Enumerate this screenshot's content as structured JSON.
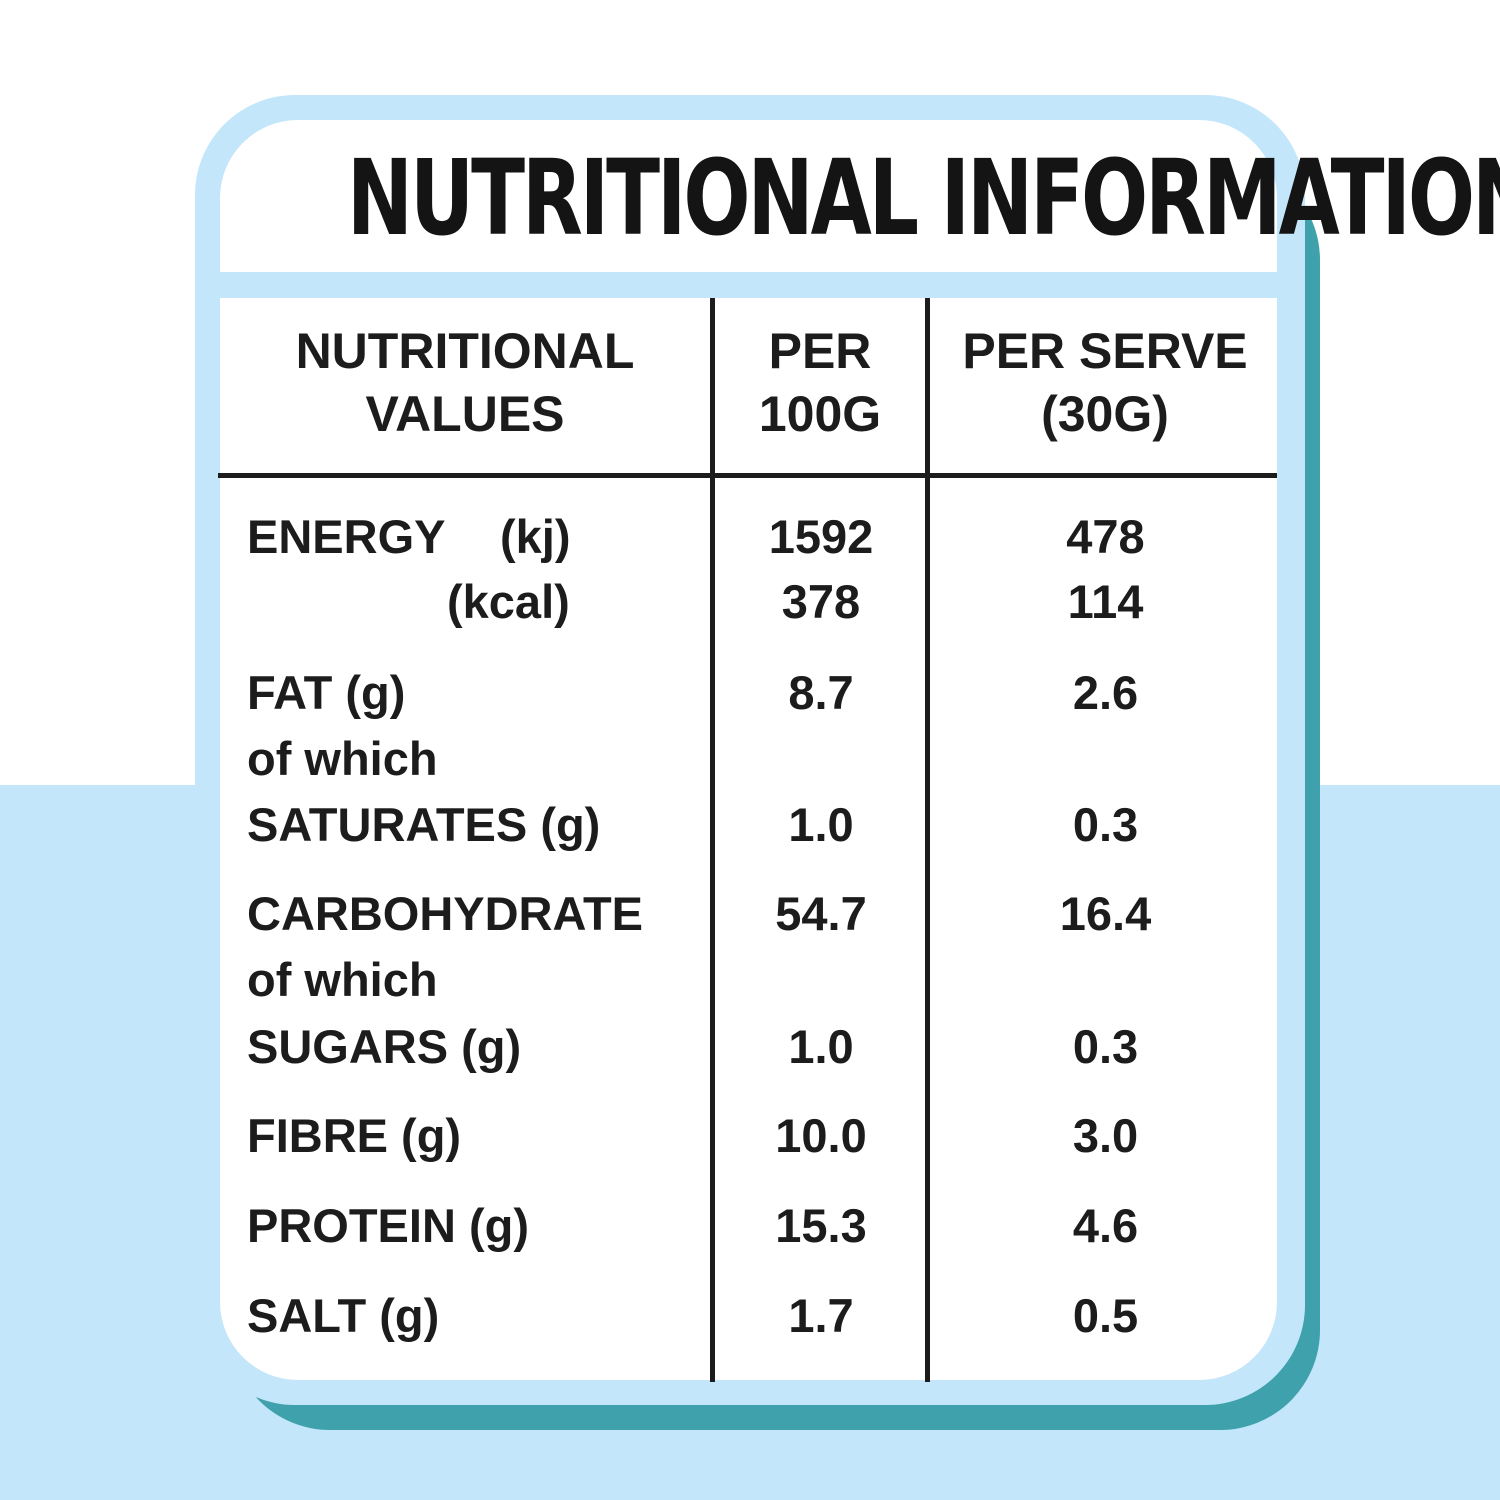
{
  "title": "NUTRITIONAL INFORMATION",
  "header": {
    "col1": "NUTRITIONAL\nVALUES",
    "col2": "PER\n100G",
    "col3": "PER SERVE\n(30G)"
  },
  "rows": {
    "energy_kj": {
      "label": "ENERGY",
      "unit": "(kj)",
      "per100": "1592",
      "serve": "478"
    },
    "energy_kcal": {
      "unit": "(kcal)",
      "per100": "378",
      "serve": "114"
    },
    "fat": {
      "label": "FAT (g)",
      "per100": "8.7",
      "serve": "2.6"
    },
    "fat_of_which": {
      "label": "of which"
    },
    "saturates": {
      "label": "SATURATES (g)",
      "per100": "1.0",
      "serve": "0.3"
    },
    "carbohydrate": {
      "label": "CARBOHYDRATE",
      "per100": "54.7",
      "serve": "16.4"
    },
    "carb_of_which": {
      "label": "of which"
    },
    "sugars": {
      "label": "SUGARS (g)",
      "per100": "1.0",
      "serve": "0.3"
    },
    "fibre": {
      "label": "FIBRE (g)",
      "per100": "10.0",
      "serve": "3.0"
    },
    "protein": {
      "label": "PROTEIN (g)",
      "per100": "15.3",
      "serve": "4.6"
    },
    "salt": {
      "label": "SALT (g)",
      "per100": "1.7",
      "serve": "0.5"
    }
  },
  "colors": {
    "light_blue": "#c3e6fb",
    "teal_shadow": "#3ea1ab",
    "ink": "#1c1c1c"
  }
}
